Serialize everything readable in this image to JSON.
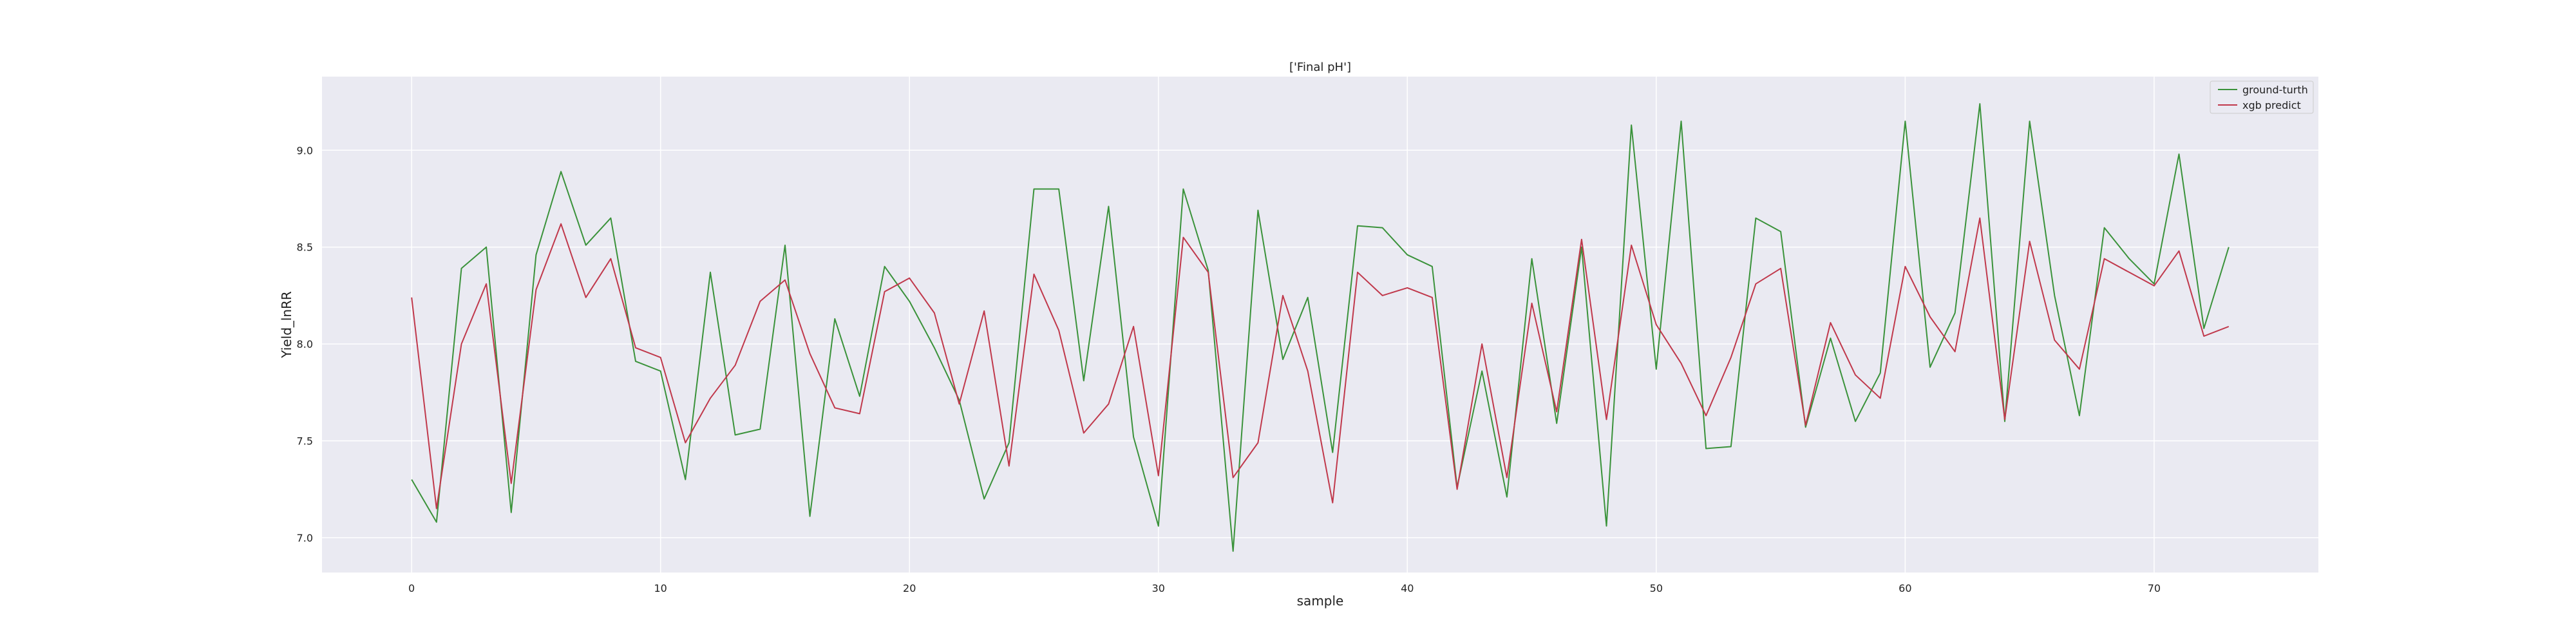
{
  "chart_data": {
    "type": "line",
    "title": "['Final pH']",
    "xlabel": "sample",
    "ylabel": "Yield_lnRR",
    "xlim": [
      -3.6,
      76.6
    ],
    "ylim": [
      6.82,
      9.38
    ],
    "xticks": [
      0,
      10,
      20,
      30,
      40,
      50,
      60,
      70
    ],
    "yticks": [
      7.0,
      7.5,
      8.0,
      8.5,
      9.0
    ],
    "ytick_labels": [
      "7.0",
      "7.5",
      "8.0",
      "8.5",
      "9.0"
    ],
    "grid": true,
    "legend_position": "top-right",
    "x": [
      0,
      1,
      2,
      3,
      4,
      5,
      6,
      7,
      8,
      9,
      10,
      11,
      12,
      13,
      14,
      15,
      16,
      17,
      18,
      19,
      20,
      21,
      22,
      23,
      24,
      25,
      26,
      27,
      28,
      29,
      30,
      31,
      32,
      33,
      34,
      35,
      36,
      37,
      38,
      39,
      40,
      41,
      42,
      43,
      44,
      45,
      46,
      47,
      48,
      49,
      50,
      51,
      52,
      53,
      54,
      55,
      56,
      57,
      58,
      59,
      60,
      61,
      62,
      63,
      64,
      65,
      66,
      67,
      68,
      69,
      70,
      71,
      72,
      73
    ],
    "series": [
      {
        "name": "ground-turth",
        "color": "#3a923a",
        "values": [
          7.3,
          7.08,
          8.39,
          8.5,
          7.13,
          8.46,
          8.89,
          8.51,
          8.65,
          7.91,
          7.86,
          7.3,
          8.37,
          7.53,
          7.56,
          8.51,
          7.11,
          8.13,
          7.73,
          8.4,
          8.22,
          7.98,
          7.71,
          7.2,
          7.49,
          8.8,
          8.8,
          7.81,
          8.71,
          7.52,
          7.06,
          8.8,
          8.38,
          6.93,
          8.69,
          7.92,
          8.24,
          7.44,
          8.61,
          8.6,
          8.46,
          8.4,
          7.26,
          7.86,
          7.21,
          8.44,
          7.59,
          8.5,
          7.06,
          9.13,
          7.87,
          9.15,
          7.46,
          7.47,
          8.65,
          8.58,
          7.57,
          8.03,
          7.6,
          7.85,
          9.15,
          7.88,
          8.16,
          9.24,
          7.6,
          9.15,
          8.25,
          7.63,
          8.6,
          8.44,
          8.31,
          8.98,
          8.08,
          8.5
        ]
      },
      {
        "name": "xgb predict",
        "color": "#c0384b",
        "values": [
          8.24,
          7.15,
          8.0,
          8.31,
          7.28,
          8.28,
          8.62,
          8.24,
          8.44,
          7.98,
          7.93,
          7.49,
          7.72,
          7.89,
          8.22,
          8.33,
          7.95,
          7.67,
          7.64,
          8.27,
          8.34,
          8.16,
          7.69,
          8.17,
          7.37,
          8.36,
          8.07,
          7.54,
          7.69,
          8.09,
          7.32,
          8.55,
          8.37,
          7.31,
          7.49,
          8.25,
          7.86,
          7.18,
          8.37,
          8.25,
          8.29,
          8.24,
          7.25,
          8.0,
          7.31,
          8.21,
          7.65,
          8.54,
          7.61,
          8.51,
          8.1,
          7.9,
          7.63,
          7.93,
          8.31,
          8.39,
          7.58,
          8.11,
          7.84,
          7.72,
          8.4,
          8.14,
          7.96,
          8.65,
          7.61,
          8.53,
          8.02,
          7.87,
          8.44,
          8.37,
          8.3,
          8.48,
          8.04,
          8.09
        ]
      }
    ]
  }
}
